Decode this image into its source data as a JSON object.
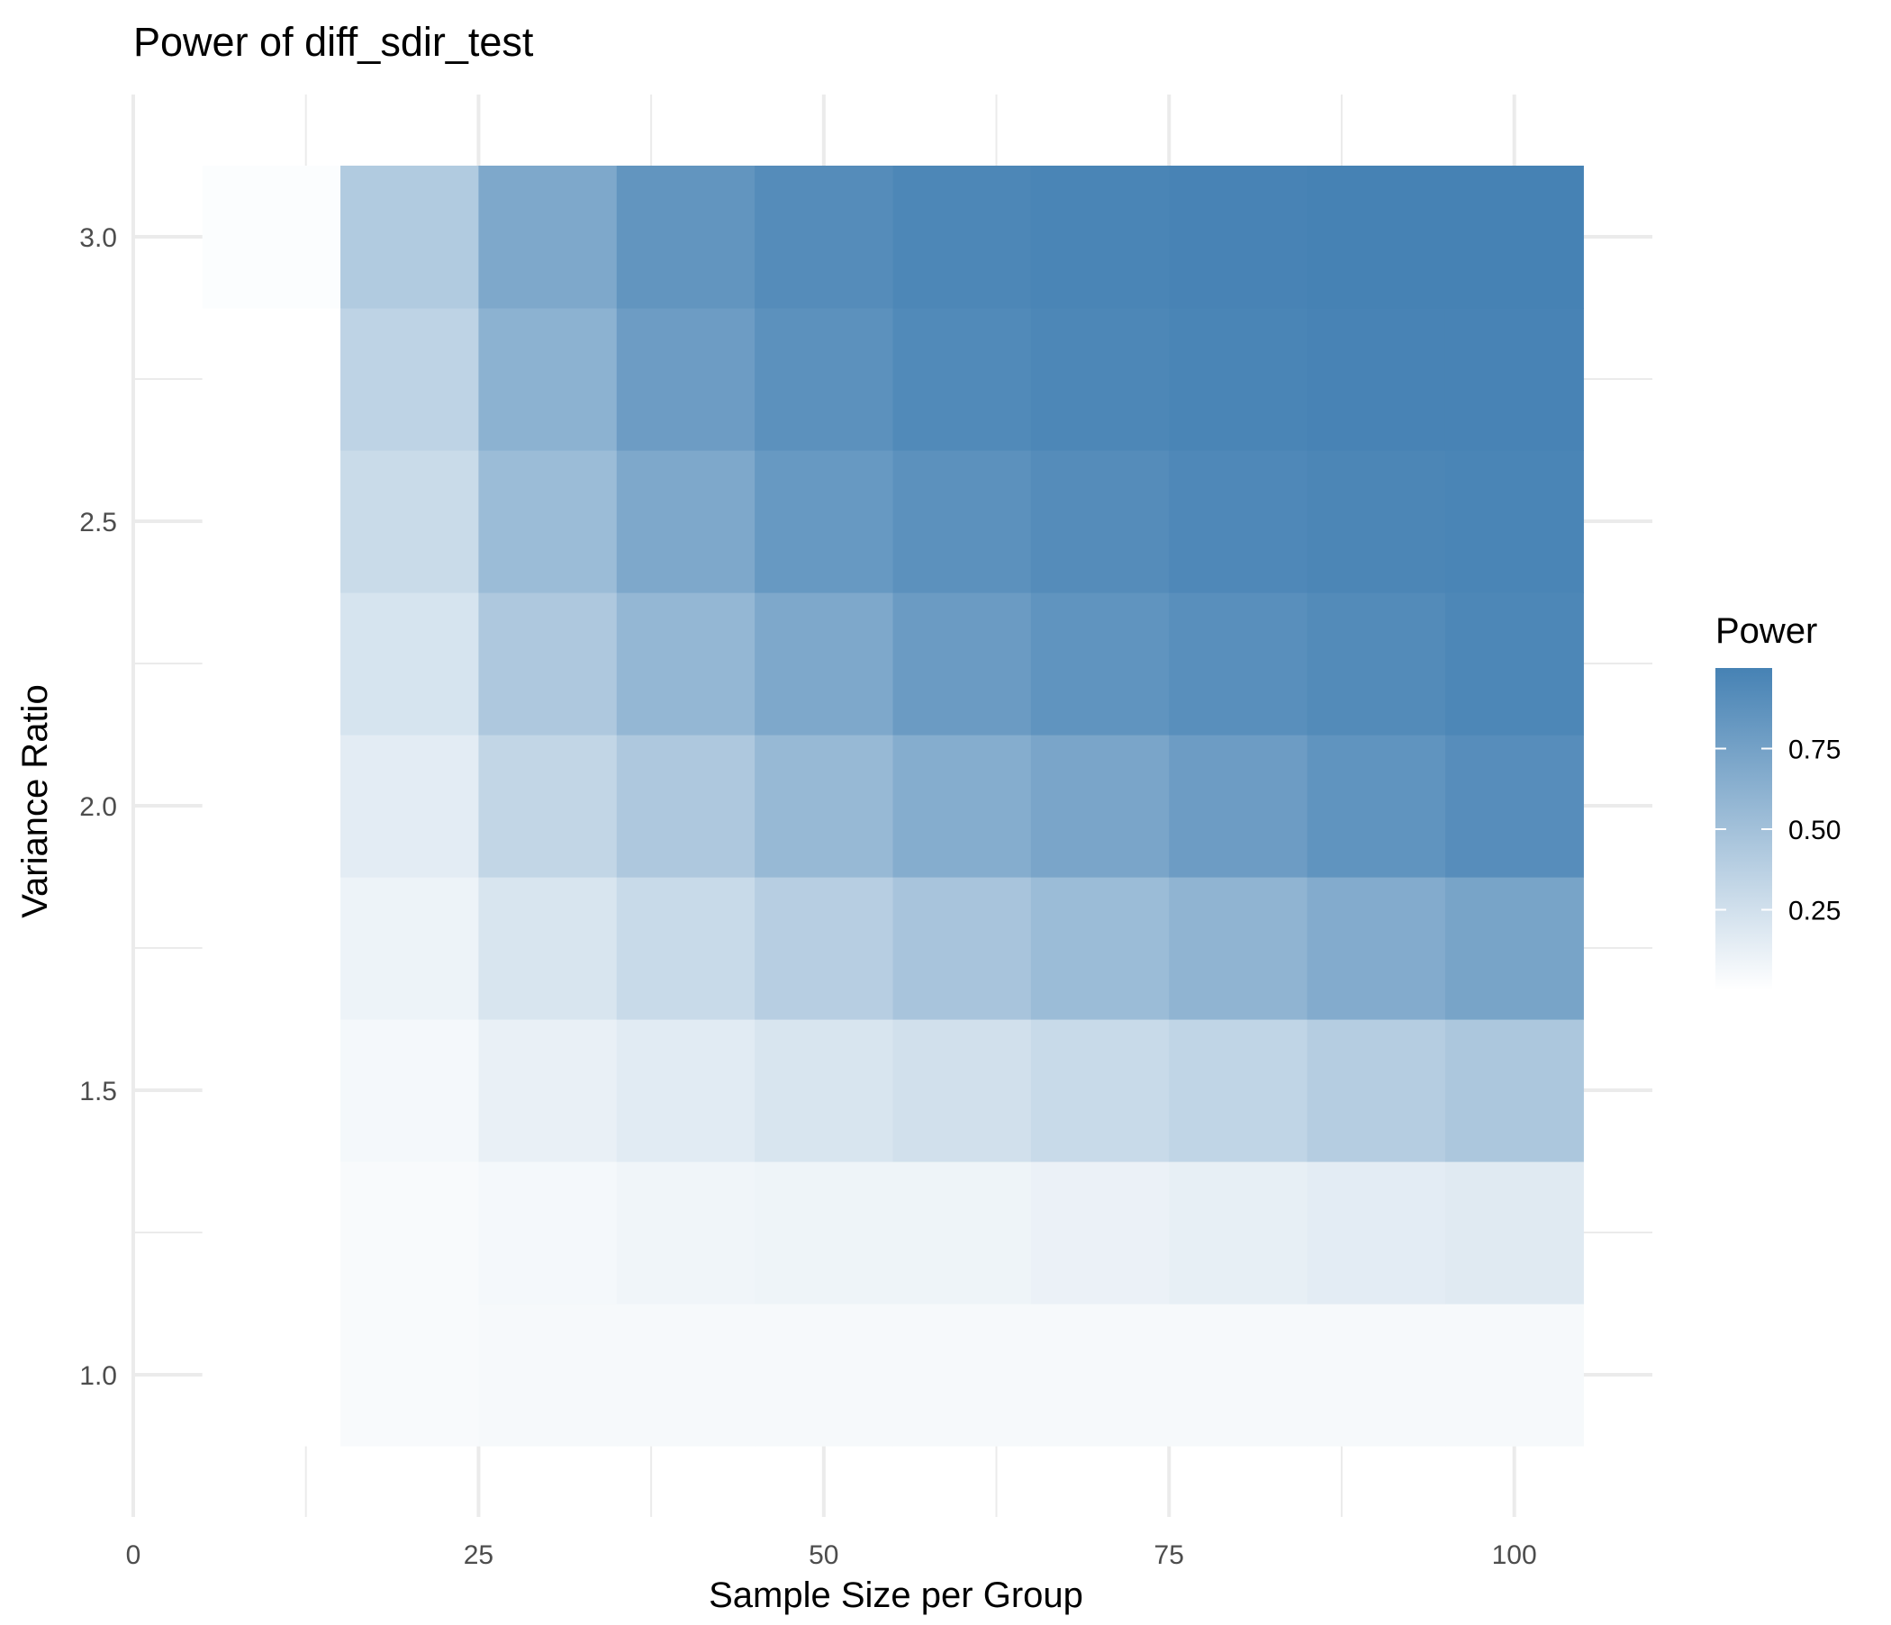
{
  "chart_data": {
    "type": "heatmap",
    "title": "Power of diff_sdir_test",
    "xlabel": "Sample Size per Group",
    "ylabel": "Variance Ratio",
    "xlim": [
      0,
      110
    ],
    "ylim": [
      0.75,
      3.25
    ],
    "x_ticks": [
      0,
      25,
      50,
      75,
      100
    ],
    "x_tick_labels": [
      "0",
      "25",
      "50",
      "75",
      "100"
    ],
    "y_ticks": [
      1.0,
      1.5,
      2.0,
      2.5,
      3.0
    ],
    "y_tick_labels": [
      "1.0",
      "1.5",
      "2.0",
      "2.5",
      "3.0"
    ],
    "x": [
      10,
      20,
      30,
      40,
      50,
      60,
      70,
      80,
      90,
      100
    ],
    "y": [
      1.0,
      1.25,
      1.5,
      1.75,
      2.0,
      2.25,
      2.5,
      2.75,
      3.0
    ],
    "z": [
      [
        0.0,
        0.04,
        0.05,
        0.05,
        0.05,
        0.05,
        0.05,
        0.05,
        0.05,
        0.05
      ],
      [
        0.0,
        0.04,
        0.06,
        0.08,
        0.09,
        0.09,
        0.11,
        0.13,
        0.15,
        0.17
      ],
      [
        0.0,
        0.06,
        0.12,
        0.16,
        0.21,
        0.25,
        0.3,
        0.34,
        0.4,
        0.45
      ],
      [
        0.0,
        0.1,
        0.21,
        0.3,
        0.39,
        0.47,
        0.54,
        0.6,
        0.67,
        0.73
      ],
      [
        0.0,
        0.15,
        0.33,
        0.44,
        0.56,
        0.66,
        0.72,
        0.79,
        0.86,
        0.91
      ],
      [
        0.0,
        0.22,
        0.44,
        0.58,
        0.7,
        0.8,
        0.86,
        0.9,
        0.93,
        0.96
      ],
      [
        0.0,
        0.29,
        0.54,
        0.7,
        0.82,
        0.88,
        0.92,
        0.95,
        0.97,
        0.98
      ],
      [
        0.0,
        0.35,
        0.62,
        0.79,
        0.88,
        0.94,
        0.96,
        0.98,
        0.99,
        0.99
      ],
      [
        0.02,
        0.42,
        0.7,
        0.85,
        0.92,
        0.96,
        0.98,
        0.99,
        1.0,
        1.0
      ]
    ],
    "color_scale": {
      "low": "#FFFFFF",
      "high": "#4682B4",
      "min": 0.0,
      "max": 1.0
    },
    "legend": {
      "title": "Power",
      "placement": "right",
      "ticks": [
        0.25,
        0.5,
        0.75
      ],
      "tick_labels": [
        "0.25",
        "0.50",
        "0.75"
      ]
    },
    "grid": true,
    "colors": {
      "grid": "#EBEBEB",
      "tick_text": "#4D4D4D",
      "title_text": "#000000"
    }
  }
}
